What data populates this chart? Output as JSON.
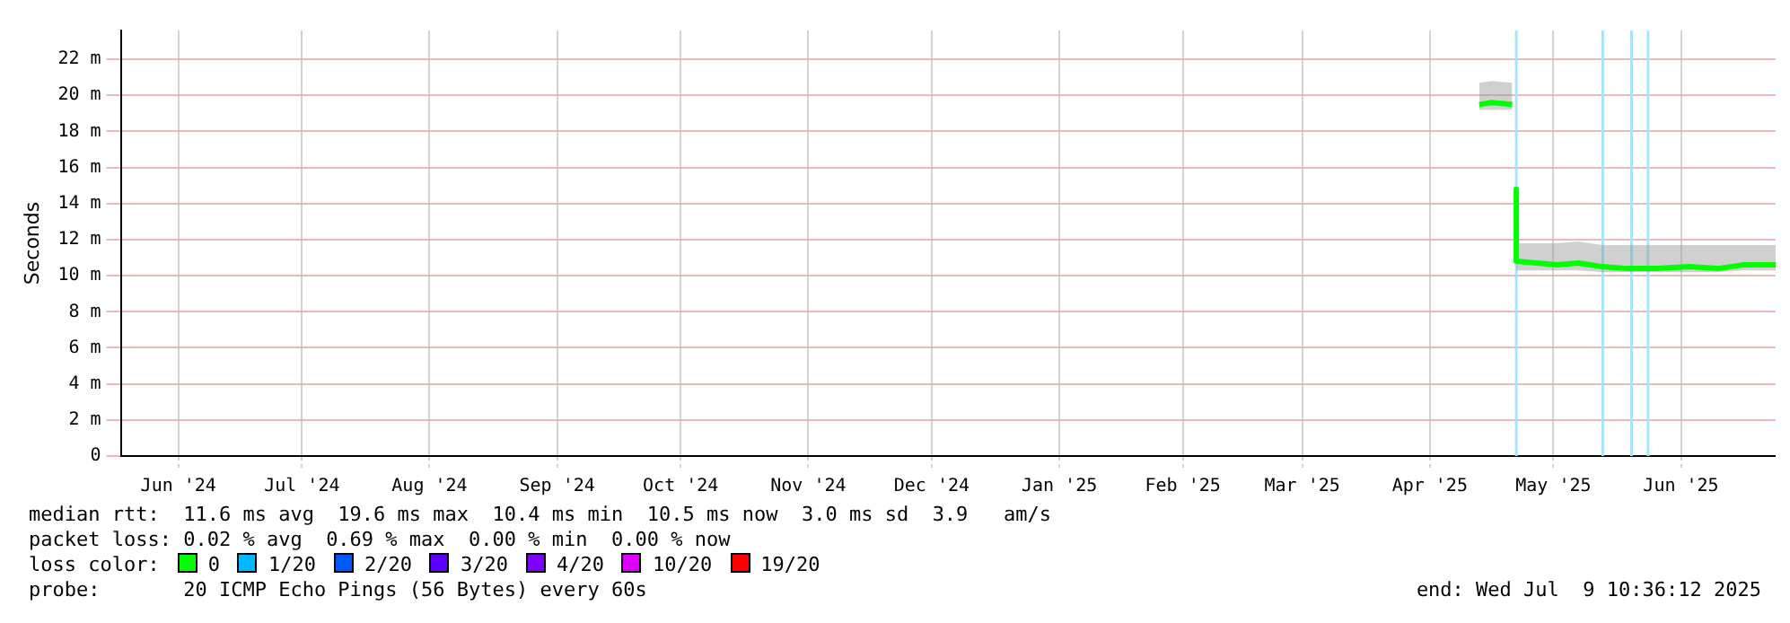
{
  "chart_data": {
    "type": "line",
    "ylabel": "Seconds",
    "legend_title": "loss color:",
    "legend": "bottom",
    "grid": true,
    "marker": "none",
    "line_style": "solid",
    "xlim": [
      "2024-06-02",
      "2025-07-09"
    ],
    "xticks": [
      {
        "value": "2024-06-16",
        "label": "Jun '24"
      },
      {
        "value": "2024-07-16",
        "label": "Jul '24"
      },
      {
        "value": "2024-08-16",
        "label": "Aug '24"
      },
      {
        "value": "2024-09-16",
        "label": "Sep '24"
      },
      {
        "value": "2024-10-16",
        "label": "Oct '24"
      },
      {
        "value": "2024-11-16",
        "label": "Nov '24"
      },
      {
        "value": "2024-12-16",
        "label": "Dec '24"
      },
      {
        "value": "2025-01-16",
        "label": "Jan '25"
      },
      {
        "value": "2025-02-15",
        "label": "Feb '25"
      },
      {
        "value": "2025-03-16",
        "label": "Mar '25"
      },
      {
        "value": "2025-04-16",
        "label": "Apr '25"
      },
      {
        "value": "2025-05-16",
        "label": "May '25"
      },
      {
        "value": "2025-06-16",
        "label": "Jun '25"
      }
    ],
    "ylim": [
      0,
      23.6
    ],
    "yticks": [
      0,
      {
        "value": 2,
        "label": "2 m"
      },
      {
        "value": 4,
        "label": "4 m"
      },
      {
        "value": 6,
        "label": "6 m"
      },
      {
        "value": 8,
        "label": "8 m"
      },
      {
        "value": 10,
        "label": "10 m"
      },
      {
        "value": 12,
        "label": "12 m"
      },
      {
        "value": 14,
        "label": "14 m"
      },
      {
        "value": 16,
        "label": "16 m"
      },
      {
        "value": 18,
        "label": "18 m"
      },
      {
        "value": 20,
        "label": "20 m"
      },
      {
        "value": 22,
        "label": "22 m"
      }
    ],
    "series": [
      {
        "name": "0",
        "color": "#00ff00",
        "x": [
          "2025-04-28",
          "2025-05-01",
          "2025-05-06",
          "2025-05-06T12:00",
          "2025-05-07",
          "2025-05-07",
          "2025-05-12",
          "2025-05-17",
          "2025-05-22",
          "2025-05-28",
          "2025-06-03",
          "2025-06-10",
          "2025-06-18",
          "2025-06-25",
          "2025-07-01",
          "2025-07-09"
        ],
        "values": [
          19.5,
          19.6,
          19.5,
          null,
          14.8,
          10.8,
          10.7,
          10.6,
          10.7,
          10.5,
          10.4,
          10.4,
          10.5,
          10.4,
          10.6,
          10.6
        ],
        "lower": [
          19.2,
          19.2,
          19.2,
          null,
          14.8,
          10.3,
          10.3,
          10.3,
          10.3,
          10.2,
          10.2,
          10.2,
          10.2,
          10.2,
          10.3,
          10.3
        ],
        "upper": [
          20.7,
          20.8,
          20.7,
          null,
          14.8,
          11.8,
          11.8,
          11.8,
          11.9,
          11.7,
          11.7,
          11.7,
          11.7,
          11.7,
          11.7,
          11.7
        ]
      },
      {
        "name": "1/20",
        "color": "#00b8ff"
      },
      {
        "name": "2/20",
        "color": "#0059ff"
      },
      {
        "name": "3/20",
        "color": "#5e00ff"
      },
      {
        "name": "4/20",
        "color": "#7e00ff"
      },
      {
        "name": "10/20",
        "color": "#dd00ff"
      },
      {
        "name": "19/20",
        "color": "#ff0000"
      }
    ],
    "ref_lines": [
      {
        "axis": "x",
        "value": "2025-05-07",
        "color": "#a8e4f8"
      },
      {
        "axis": "x",
        "value": "2025-05-28",
        "color": "#a8e4f8"
      },
      {
        "axis": "x",
        "value": "2025-06-04",
        "color": "#a8e4f8"
      },
      {
        "axis": "x",
        "value": "2025-06-08",
        "color": "#a8e4f8"
      }
    ],
    "annotations": [
      "median rtt:  11.6 ms avg  19.6 ms max  10.4 ms min  10.5 ms now  3.0 ms sd  3.9   am/s",
      "packet loss: 0.02 % avg  0.69 % max  0.00 % min  0.00 % now",
      "probe:       20 ICMP Echo Pings (56 Bytes) every 60s",
      "end: Wed Jul  9 10:36:12 2025"
    ]
  }
}
